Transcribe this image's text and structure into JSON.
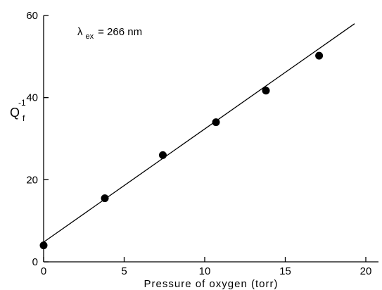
{
  "chart_data": {
    "type": "scatter",
    "xlabel": "Pressure of oxygen  (torr)",
    "ylabel": {
      "main": "Q",
      "sub": "f",
      "sup": "-1"
    },
    "xlim": [
      0,
      20
    ],
    "ylim": [
      0,
      60
    ],
    "xticks": [
      0,
      5,
      10,
      15,
      20
    ],
    "yticks": [
      0,
      20,
      40,
      60
    ],
    "xtick_labels": [
      "0",
      "5",
      "10",
      "15",
      "20"
    ],
    "ytick_labels": [
      "0",
      "20",
      "40",
      "60"
    ],
    "grid": false,
    "annotation": {
      "symbol": "λ",
      "sub": "ex",
      "text": "= 266 nm"
    },
    "series": [
      {
        "x": [
          0.0,
          3.8,
          7.4,
          10.7,
          13.8,
          17.1
        ],
        "y": [
          4.0,
          15.5,
          26.0,
          34.0,
          41.7,
          50.2
        ]
      }
    ],
    "fit_line": {
      "x": [
        0,
        19.3
      ],
      "y": [
        4.8,
        58.0
      ]
    }
  }
}
